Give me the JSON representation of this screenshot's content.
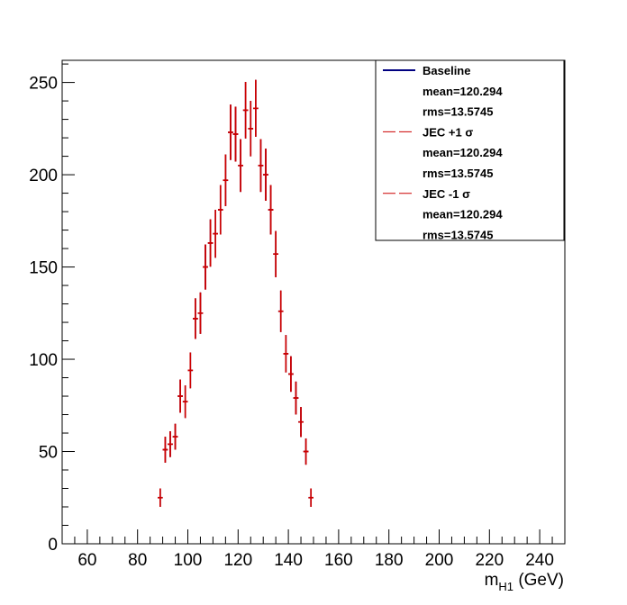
{
  "chart_data": {
    "type": "scatter",
    "xlabel_main": "m",
    "xlabel_sub": "H1",
    "xlabel_unit": " (GeV)",
    "ylabel": "",
    "xlim": [
      50,
      250
    ],
    "ylim": [
      0,
      262
    ],
    "x_ticks": [
      60,
      80,
      100,
      120,
      140,
      160,
      180,
      200,
      220,
      240
    ],
    "y_ticks": [
      0,
      50,
      100,
      150,
      200,
      250
    ],
    "grid": false,
    "legend_position": "top-right",
    "legend": [
      {
        "label": "Baseline",
        "style": "solid",
        "color": "#000080"
      },
      {
        "label": "mean=120.294",
        "style": "none"
      },
      {
        "label": "rms=13.5745",
        "style": "none"
      },
      {
        "label": "JEC +1 σ",
        "style": "dashed",
        "color": "#cc0000"
      },
      {
        "label": "mean=120.294",
        "style": "none"
      },
      {
        "label": "rms=13.5745",
        "style": "none"
      },
      {
        "label": "JEC -1 σ",
        "style": "dashed",
        "color": "#cc0000"
      },
      {
        "label": "mean=120.294",
        "style": "none"
      },
      {
        "label": "rms=13.5745",
        "style": "none"
      }
    ],
    "series": [
      {
        "name": "Baseline",
        "color": "#000080",
        "bin_width": 2,
        "x": [
          89,
          91,
          93,
          95,
          97,
          99,
          101,
          103,
          105,
          107,
          109,
          111,
          113,
          115,
          117,
          119,
          121,
          123,
          125,
          127,
          129,
          131,
          133,
          135,
          137,
          139,
          141,
          143,
          145,
          147,
          149
        ],
        "y": [
          25,
          51,
          54,
          58,
          80,
          77,
          94,
          122,
          125,
          150,
          163,
          168,
          181,
          197,
          223,
          222,
          205,
          235,
          225,
          236,
          205,
          200,
          181,
          157,
          126,
          103,
          92,
          79,
          66,
          50,
          25
        ],
        "err": [
          5,
          7,
          7,
          7,
          9,
          8.8,
          9.7,
          11,
          11.2,
          12.2,
          12.8,
          13,
          13.4,
          14,
          15,
          14.9,
          14.3,
          15.3,
          15,
          15.4,
          14.3,
          14.1,
          13.4,
          12.5,
          11.2,
          10.1,
          9.6,
          8.9,
          8.1,
          7.1,
          5
        ]
      },
      {
        "name": "JEC +1 σ",
        "color": "#cc0000",
        "bin_width": 2,
        "x": [
          89,
          91,
          93,
          95,
          97,
          99,
          101,
          103,
          105,
          107,
          109,
          111,
          113,
          115,
          117,
          119,
          121,
          123,
          125,
          127,
          129,
          131,
          133,
          135,
          137,
          139,
          141,
          143,
          145,
          147,
          149
        ],
        "y": [
          25,
          51,
          54,
          58,
          80,
          77,
          94,
          122,
          125,
          150,
          163,
          168,
          181,
          197,
          223,
          222,
          205,
          235,
          225,
          236,
          205,
          200,
          181,
          157,
          126,
          103,
          92,
          79,
          66,
          50,
          25
        ],
        "err": [
          5,
          7,
          7,
          7,
          9,
          8.8,
          9.7,
          11,
          11.2,
          12.2,
          12.8,
          13,
          13.4,
          14,
          15,
          14.9,
          14.3,
          15.3,
          15,
          15.4,
          14.3,
          14.1,
          13.4,
          12.5,
          11.2,
          10.1,
          9.6,
          8.9,
          8.1,
          7.1,
          5
        ]
      },
      {
        "name": "JEC -1 σ",
        "color": "#cc0000",
        "bin_width": 2,
        "x": [
          89,
          91,
          93,
          95,
          97,
          99,
          101,
          103,
          105,
          107,
          109,
          111,
          113,
          115,
          117,
          119,
          121,
          123,
          125,
          127,
          129,
          131,
          133,
          135,
          137,
          139,
          141,
          143,
          145,
          147,
          149
        ],
        "y": [
          25,
          51,
          54,
          58,
          80,
          77,
          94,
          122,
          125,
          150,
          163,
          168,
          181,
          197,
          223,
          222,
          205,
          235,
          225,
          236,
          205,
          200,
          181,
          157,
          126,
          103,
          92,
          79,
          66,
          50,
          25
        ],
        "err": [
          5,
          7,
          7,
          7,
          9,
          8.8,
          9.7,
          11,
          11.2,
          12.2,
          12.8,
          13,
          13.4,
          14,
          15,
          14.9,
          14.3,
          15.3,
          15,
          15.4,
          14.3,
          14.1,
          13.4,
          12.5,
          11.2,
          10.1,
          9.6,
          8.9,
          8.1,
          7.1,
          5
        ]
      }
    ]
  }
}
